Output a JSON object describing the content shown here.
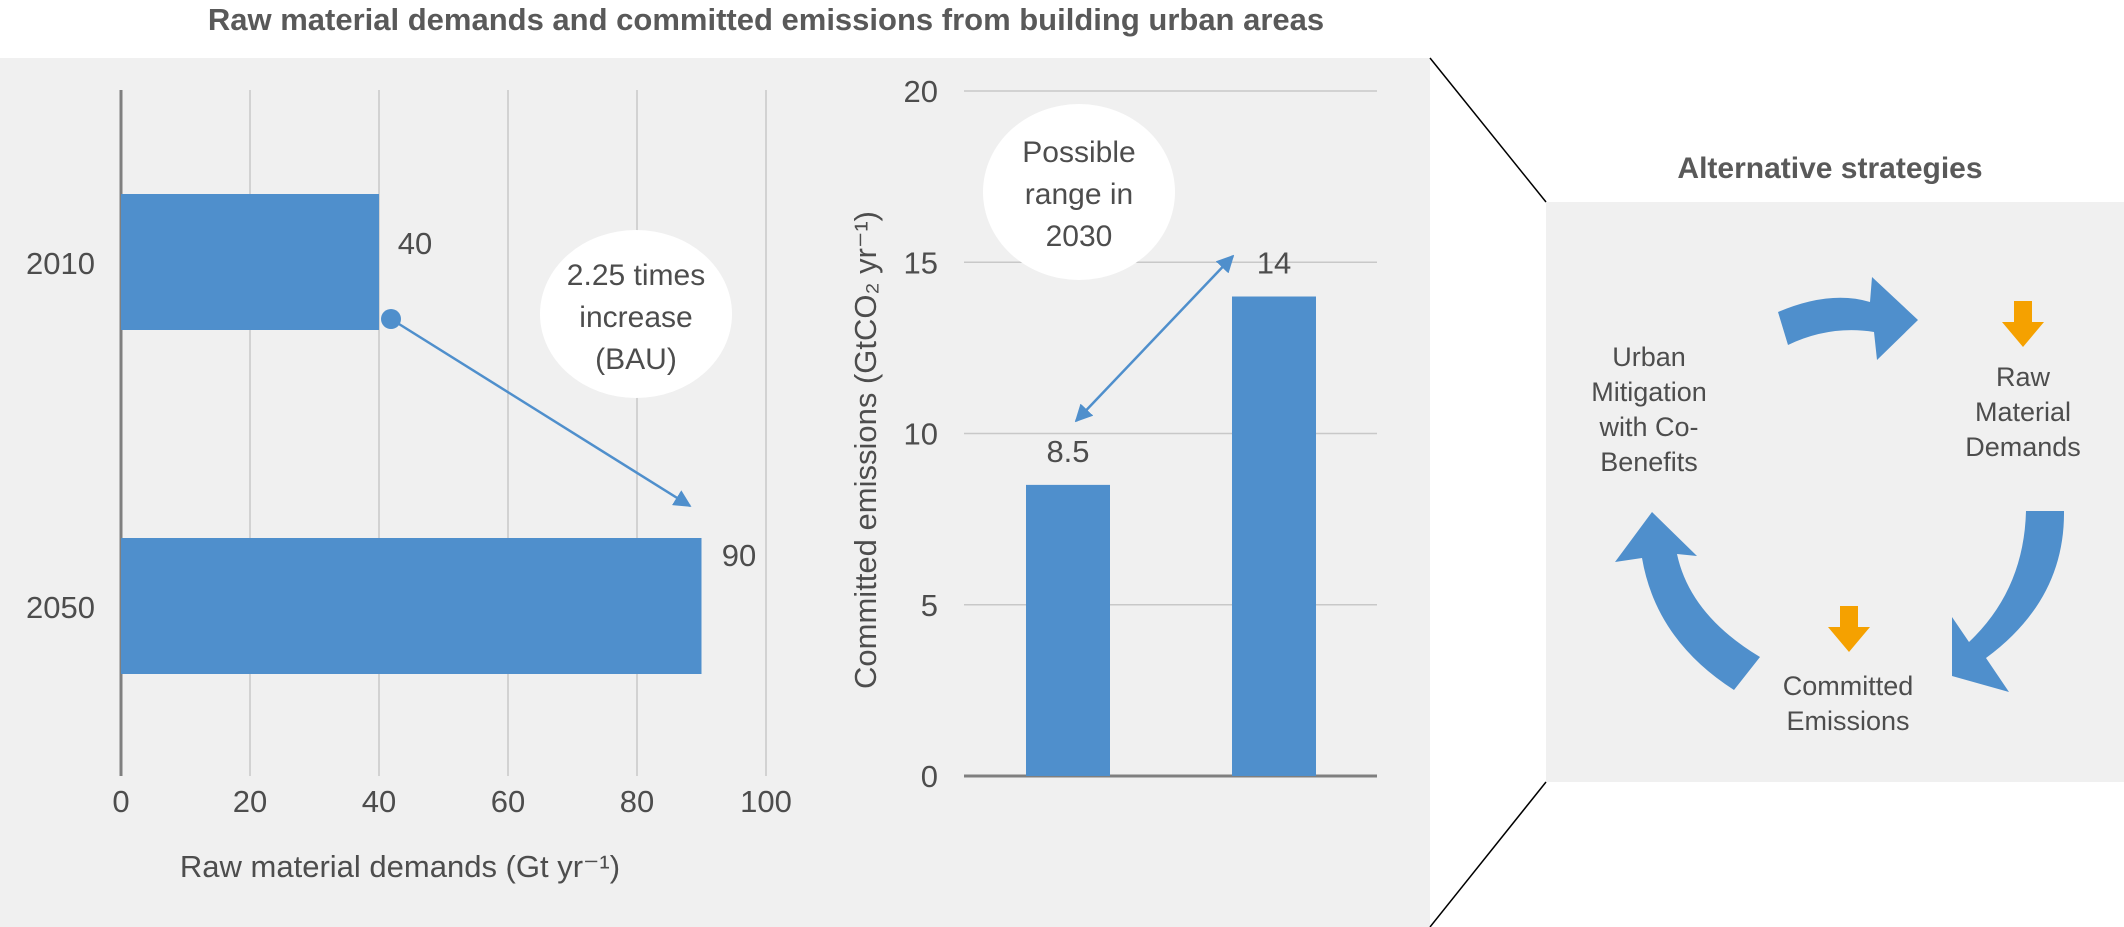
{
  "title": "Raw material demands and committed emissions from building urban areas",
  "chart_data": [
    {
      "type": "bar",
      "orientation": "horizontal",
      "categories": [
        "2010",
        "2050"
      ],
      "values": [
        40,
        90
      ],
      "data_labels": [
        "40",
        "90"
      ],
      "xlabel": "Raw material demands (Gt yr⁻¹)",
      "xlim": [
        0,
        100
      ],
      "xticks": [
        "0",
        "20",
        "40",
        "60",
        "80",
        "100"
      ],
      "grid": "vertical",
      "bar_color": "#4f8fcc",
      "annotation": [
        "2.25 times",
        "increase",
        "(BAU)"
      ]
    },
    {
      "type": "bar",
      "orientation": "vertical",
      "categories": [
        "",
        ""
      ],
      "values": [
        8.5,
        14
      ],
      "data_labels": [
        "8.5",
        "14"
      ],
      "ylabel": "Committed emissions (GtCO₂ yr⁻¹)",
      "ylim": [
        0,
        20
      ],
      "yticks": [
        "0",
        "5",
        "10",
        "15",
        "20"
      ],
      "grid": "horizontal",
      "bar_color": "#4f8fcc",
      "annotation": [
        "Possible",
        "range in",
        "2030"
      ]
    }
  ],
  "strategies": {
    "title": "Alternative strategies",
    "urban": [
      "Urban",
      "Mitigation",
      "with Co-",
      "Benefits"
    ],
    "raw": [
      "Raw",
      "Material",
      "Demands"
    ],
    "committed": [
      "Committed",
      "Emissions"
    ],
    "arrow_color": "#4f8fcc",
    "down_arrow_color": "#f5a100"
  }
}
